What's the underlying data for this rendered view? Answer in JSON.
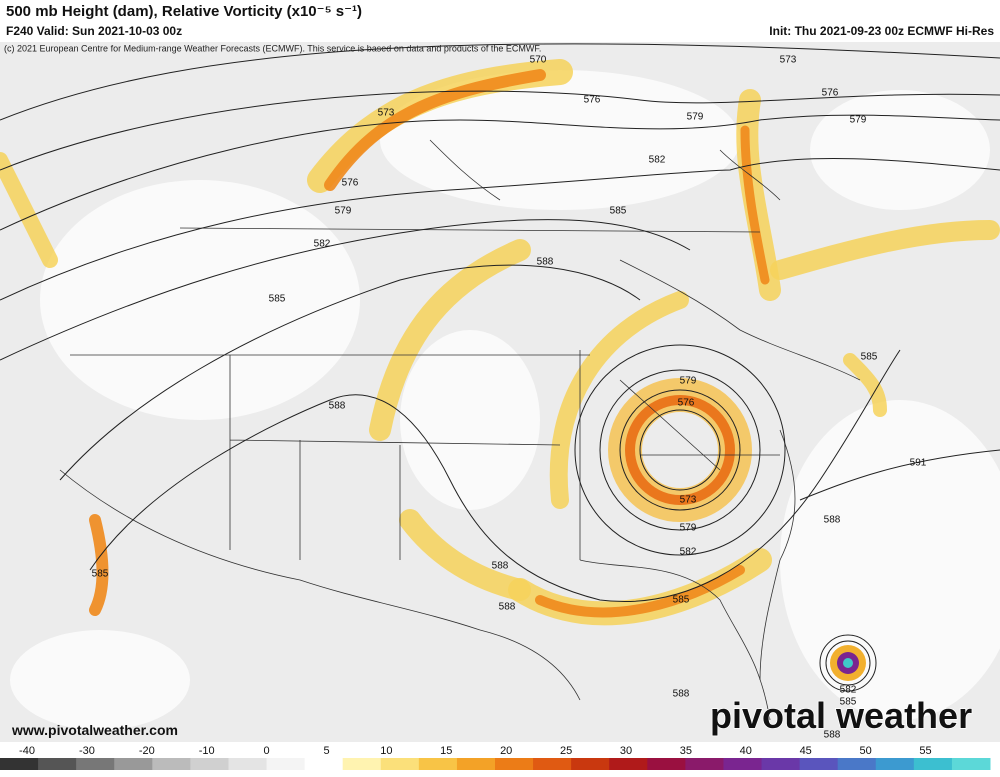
{
  "header": {
    "title": "500 mb Height (dam), Relative Vorticity (x10⁻⁵ s⁻¹)",
    "valid": "F240 Valid: Sun 2021-10-03 00z",
    "init": "Init: Thu 2021-09-23 00z ECMWF Hi-Res"
  },
  "map": {
    "credit": "(c) 2021 European Centre for Medium-range Weather Forecasts (ECMWF). This service is based on data and products of the ECMWF.",
    "contour_labels": [
      "570",
      "573",
      "576",
      "576",
      "573",
      "579",
      "579",
      "582",
      "576",
      "579",
      "585",
      "582",
      "588",
      "585",
      "585",
      "579",
      "576",
      "588",
      "591",
      "573",
      "579",
      "588",
      "582",
      "585",
      "588",
      "585",
      "588",
      "588",
      "582",
      "585",
      "588"
    ],
    "website": "www.pivotalweather.com",
    "watermark": "pivotal weather"
  },
  "colorbar": {
    "labels": [
      "-40",
      "-30",
      "-20",
      "-10",
      "0",
      "5",
      "10",
      "15",
      "20",
      "25",
      "30",
      "35",
      "40",
      "45",
      "50",
      "55"
    ]
  }
}
